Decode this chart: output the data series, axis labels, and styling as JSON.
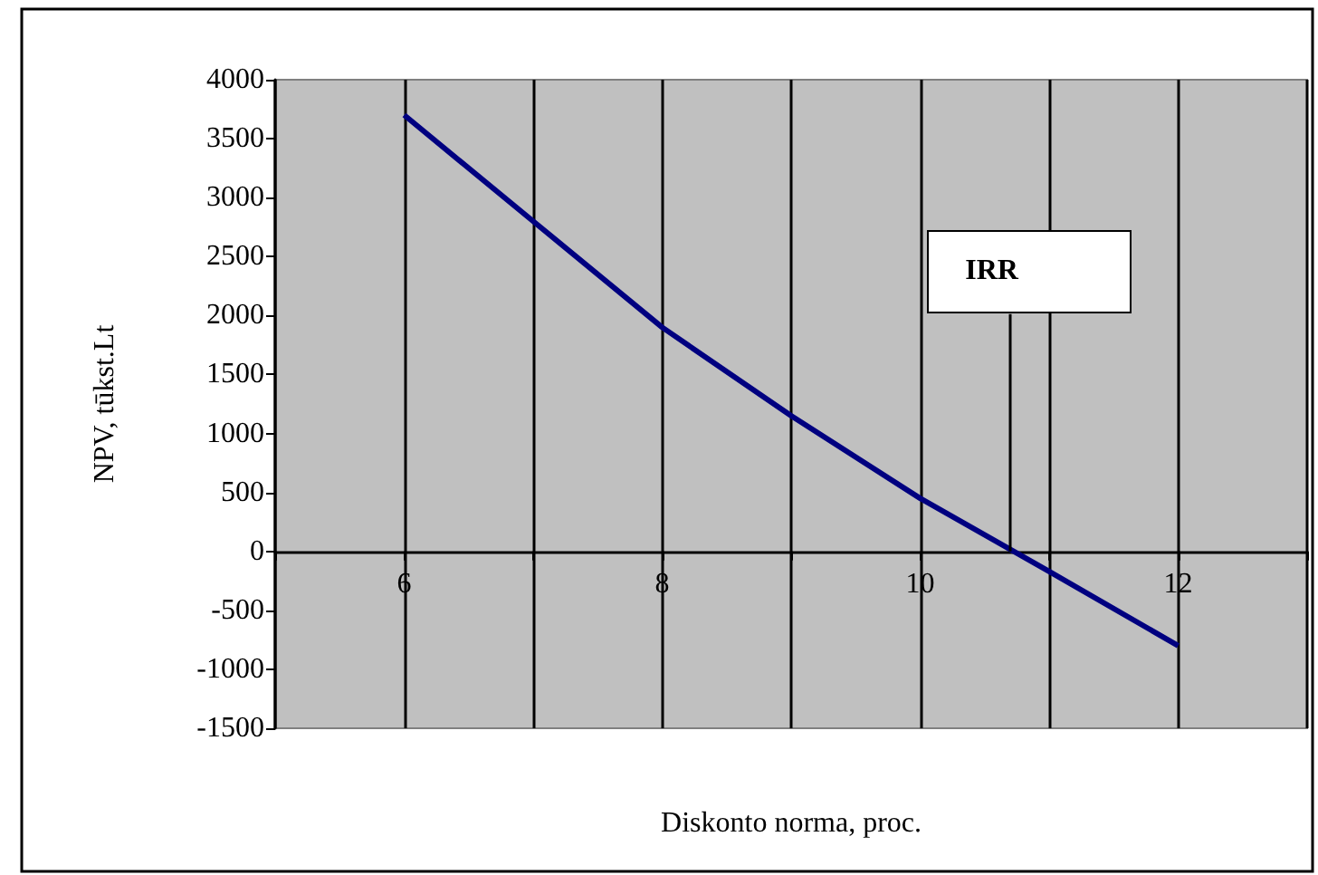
{
  "chart_data": {
    "type": "line",
    "xlabel": "Diskonto norma, proc.",
    "ylabel": "NPV, tūkst.Lt",
    "x": [
      6,
      7,
      8,
      9,
      10,
      11,
      12
    ],
    "series": [
      {
        "color": "#000080",
        "values": [
          3700,
          2800,
          1900,
          1150,
          450,
          -170,
          -800
        ]
      }
    ],
    "xlim": [
      5,
      13
    ],
    "xticks": [
      {
        "value": 5,
        "label": null
      },
      6,
      {
        "value": 7,
        "label": null
      },
      8,
      {
        "value": 9,
        "label": null
      },
      10,
      {
        "value": 11,
        "label": null
      },
      12,
      {
        "value": 13,
        "label": null
      }
    ],
    "ylim": [
      -1500,
      4000
    ],
    "yticks": [
      -1500,
      -1000,
      -500,
      0,
      500,
      1000,
      1500,
      2000,
      2500,
      3000,
      3500,
      4000
    ],
    "grid": "x",
    "marker": "none",
    "line_style": "solid",
    "ref_lines": [
      {
        "axis": "x",
        "value": 10.7,
        "label": "IRR",
        "color": "#000000"
      }
    ]
  }
}
